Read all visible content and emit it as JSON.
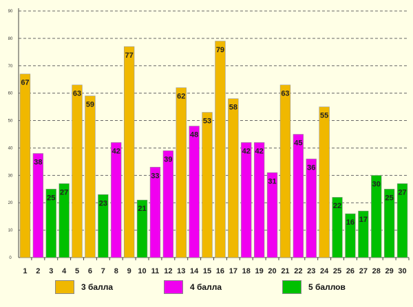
{
  "chart_data": {
    "type": "bar",
    "categories": [
      "1",
      "2",
      "3",
      "4",
      "5",
      "6",
      "7",
      "8",
      "9",
      "10",
      "11",
      "12",
      "13",
      "14",
      "15",
      "16",
      "17",
      "18",
      "19",
      "20",
      "21",
      "22",
      "23",
      "24",
      "25",
      "26",
      "27",
      "28",
      "29",
      "30"
    ],
    "values": [
      67,
      38,
      25,
      27,
      63,
      59,
      23,
      42,
      77,
      21,
      33,
      39,
      62,
      48,
      53,
      79,
      58,
      42,
      42,
      31,
      63,
      45,
      36,
      55,
      22,
      16,
      17,
      30,
      25,
      27
    ],
    "groups": [
      3,
      4,
      5,
      5,
      3,
      3,
      5,
      4,
      3,
      5,
      4,
      4,
      3,
      4,
      3,
      3,
      3,
      4,
      4,
      4,
      3,
      4,
      4,
      3,
      5,
      5,
      5,
      5,
      5,
      5
    ],
    "ylim": [
      0,
      90
    ],
    "yticks": [
      0,
      10,
      20,
      30,
      40,
      50,
      60,
      70,
      80,
      90
    ],
    "title": "",
    "xlabel": "",
    "ylabel": "",
    "grid": true,
    "legend": [
      {
        "key": 3,
        "label": "3 балла",
        "color": "#f0b800"
      },
      {
        "key": 4,
        "label": "4 балла",
        "color": "#f000f0"
      },
      {
        "key": 5,
        "label": "5 баллов",
        "color": "#00c000"
      }
    ]
  }
}
